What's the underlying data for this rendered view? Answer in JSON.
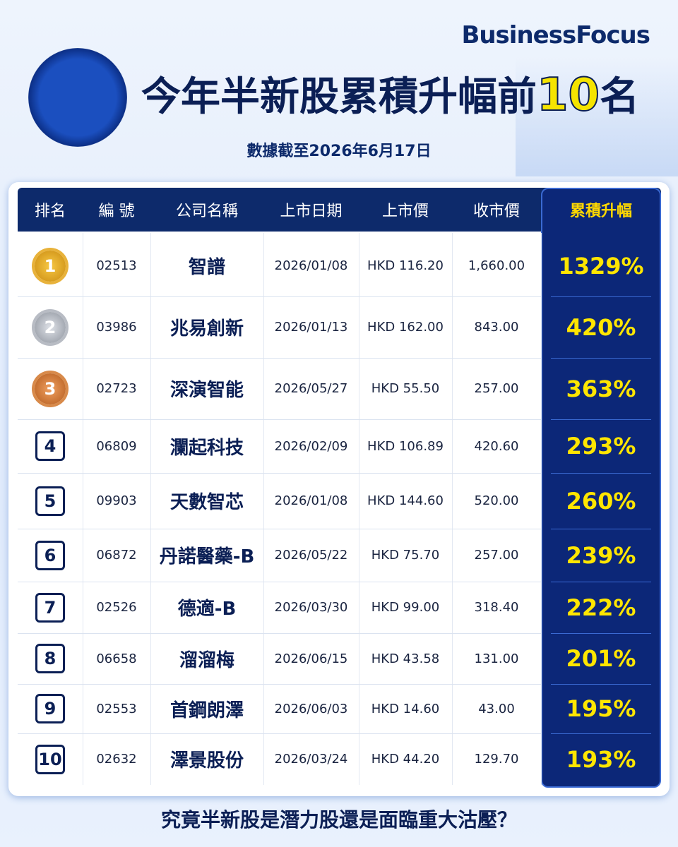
{
  "header": {
    "brand": "BusinessFocus",
    "title": [
      "今年半新股累積升幅前",
      "10",
      "名"
    ],
    "subtitle": "數據截至2026年6月17日"
  },
  "table": {
    "headers": [
      "排名",
      "編 號",
      "公司名稱",
      "上市日期",
      "上市價",
      "收市價",
      "累積升幅"
    ],
    "rows": [
      [
        "1",
        "02513",
        "智譜",
        "2026/01/08",
        "HKD 116.20",
        "1,660.00",
        "1329%"
      ],
      [
        "2",
        "03986",
        "兆易創新",
        "2026/01/13",
        "HKD 162.00",
        "843.00",
        "420%"
      ],
      [
        "3",
        "02723",
        "深演智能",
        "2026/05/27",
        "HKD 55.50",
        "257.00",
        "363%"
      ],
      [
        "4",
        "06809",
        "瀾起科技",
        "2026/02/09",
        "HKD 106.89",
        "420.60",
        "293%"
      ],
      [
        "5",
        "09903",
        "天數智芯",
        "2026/01/08",
        "HKD 144.60",
        "520.00",
        "260%"
      ],
      [
        "6",
        "06872",
        "丹諾醫藥-B",
        "2026/05/22",
        "HKD 75.70",
        "257.00",
        "239%"
      ],
      [
        "7",
        "02526",
        "德適-B",
        "2026/03/30",
        "HKD 99.00",
        "318.40",
        "222%"
      ],
      [
        "8",
        "06658",
        "溜溜梅",
        "2026/06/15",
        "HKD 43.58",
        "131.00",
        "201%"
      ],
      [
        "9",
        "02553",
        "首鋼朗澤",
        "2026/06/03",
        "HKD 14.60",
        "43.00",
        "195%"
      ],
      [
        "10",
        "02632",
        "澤景股份",
        "2026/03/24",
        "HKD 44.20",
        "129.70",
        "193%"
      ]
    ]
  },
  "footer": {
    "question": "究竟半新股是潛力股還是面臨重大沽壓？"
  }
}
